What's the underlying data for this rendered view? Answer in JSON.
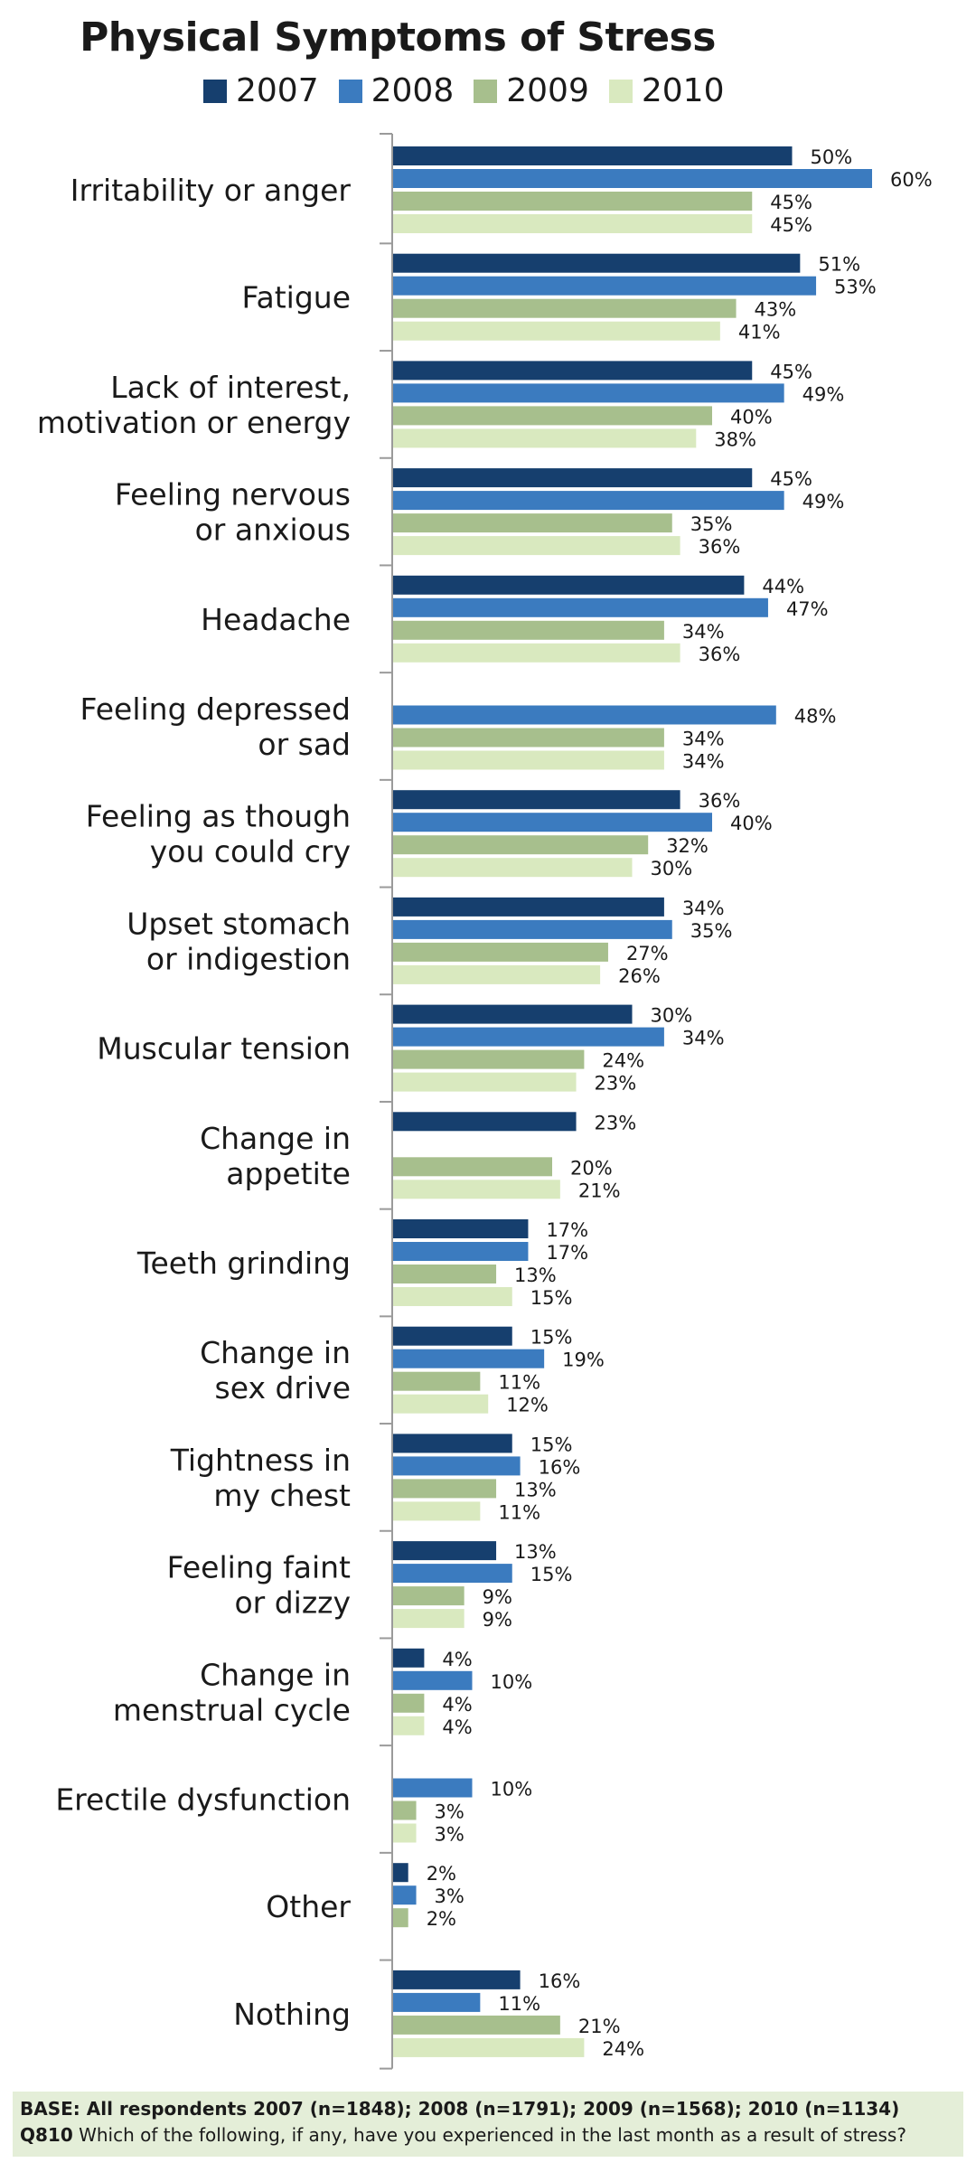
{
  "chart_data": {
    "type": "bar",
    "orientation": "horizontal",
    "title": "Physical Symptoms of Stress",
    "legend_position": "top",
    "xlim": [
      0,
      65
    ],
    "grid": false,
    "value_suffix": "%",
    "categories": [
      [
        "Irritability or anger"
      ],
      [
        "Fatigue"
      ],
      [
        "Lack of interest,",
        "motivation or energy"
      ],
      [
        "Feeling nervous",
        "or anxious"
      ],
      [
        "Headache"
      ],
      [
        "Feeling depressed",
        "or sad"
      ],
      [
        "Feeling as though",
        "you could cry"
      ],
      [
        "Upset stomach",
        "or indigestion"
      ],
      [
        "Muscular tension"
      ],
      [
        "Change in",
        "appetite"
      ],
      [
        "Teeth grinding"
      ],
      [
        "Change in",
        "sex drive"
      ],
      [
        "Tightness in",
        "my chest"
      ],
      [
        "Feeling faint",
        "or dizzy"
      ],
      [
        "Change in",
        "menstrual cycle"
      ],
      [
        "Erectile dysfunction"
      ],
      [
        "Other"
      ],
      [
        "Nothing"
      ]
    ],
    "series": [
      {
        "name": "2007",
        "color": "#163f6e",
        "values": [
          50,
          51,
          45,
          45,
          44,
          null,
          36,
          34,
          30,
          23,
          17,
          15,
          15,
          13,
          4,
          null,
          2,
          16
        ]
      },
      {
        "name": "2008",
        "color": "#3b7bbf",
        "values": [
          60,
          53,
          49,
          49,
          47,
          48,
          40,
          35,
          34,
          null,
          17,
          19,
          16,
          15,
          10,
          10,
          3,
          11
        ]
      },
      {
        "name": "2009",
        "color": "#a7bf8d",
        "values": [
          45,
          43,
          40,
          35,
          34,
          34,
          32,
          27,
          24,
          20,
          13,
          11,
          13,
          9,
          4,
          3,
          2,
          21
        ]
      },
      {
        "name": "2010",
        "color": "#d9e9bf",
        "values": [
          45,
          41,
          38,
          36,
          36,
          34,
          30,
          26,
          23,
          21,
          15,
          12,
          11,
          9,
          4,
          3,
          null,
          24
        ]
      }
    ]
  },
  "footnote": {
    "base": "BASE: All respondents 2007 (n=1848);  2008 (n=1791); 2009 (n=1568); 2010 (n=1134)",
    "question_id": "Q810",
    "question": "Which of the following, if any, have you experienced in the last month as a result of stress?"
  }
}
